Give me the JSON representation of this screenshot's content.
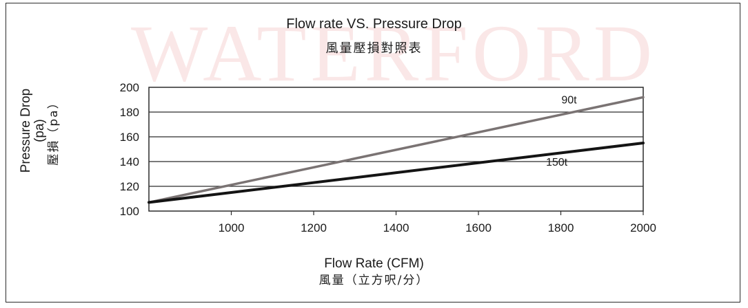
{
  "watermark": "WATERFORD",
  "chart_data": {
    "type": "line",
    "title": "Flow rate VS. Pressure Drop",
    "subtitle": "風量壓損對照表",
    "xlabel": "Flow Rate (CFM)",
    "xlabel_cjk": "風量（立方呎/分）",
    "ylabel": "Pressure Drop",
    "ylabel_unit": "(pa)",
    "ylabel_cjk": "壓損（pa）",
    "xlim": [
      800,
      2000
    ],
    "ylim": [
      100,
      200
    ],
    "xticks": [
      1000,
      1200,
      1400,
      1600,
      1800,
      2000
    ],
    "yticks": [
      100,
      120,
      140,
      160,
      180,
      200
    ],
    "grid": "horizontal",
    "series": [
      {
        "name": "90t",
        "color": "#7a7373",
        "x": [
          800,
          2000
        ],
        "y": [
          107,
          192
        ]
      },
      {
        "name": "150t",
        "color": "#141414",
        "x": [
          800,
          2000
        ],
        "y": [
          107,
          155
        ]
      }
    ]
  }
}
